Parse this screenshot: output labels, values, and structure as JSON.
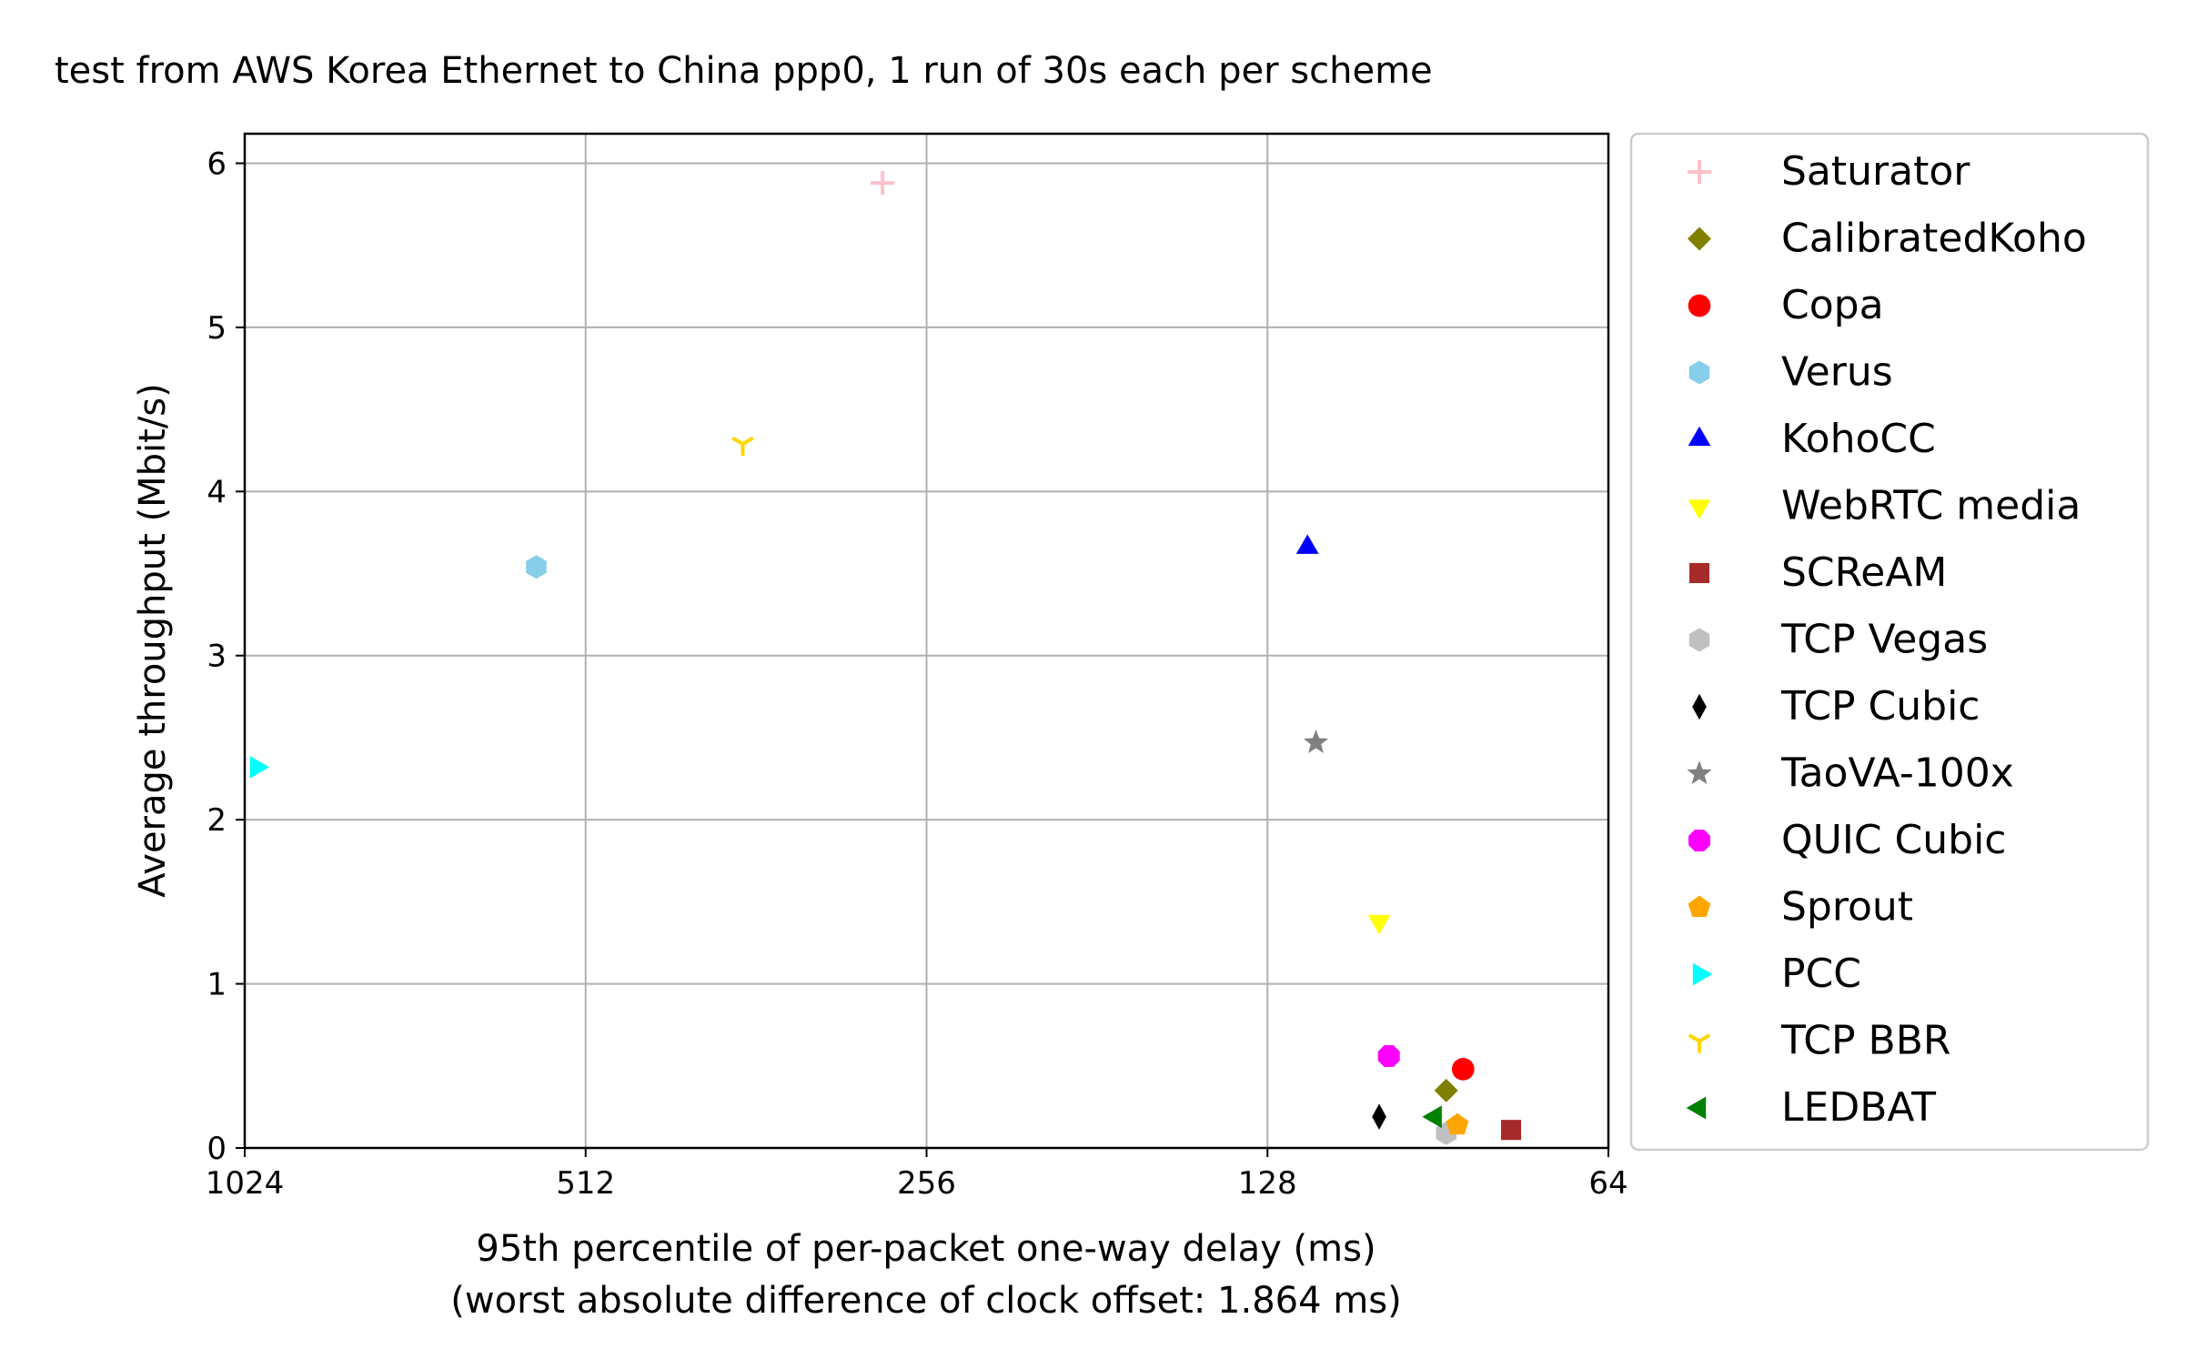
{
  "chart_data": {
    "type": "scatter",
    "title": "test from AWS Korea Ethernet to China ppp0, 1 run of 30s each per scheme",
    "xlabel": "95th percentile of per-packet one-way delay (ms)",
    "xlabel2": "(worst absolute difference of clock offset: 1.864 ms)",
    "ylabel": "Average throughput (Mbit/s)",
    "x_scale": "log2",
    "x_inverted": true,
    "xlim": [
      1024,
      64
    ],
    "ylim": [
      0,
      6.18
    ],
    "x_ticks": [
      1024,
      512,
      256,
      128,
      64
    ],
    "x_tick_labels": [
      "1024",
      "512",
      "256",
      "128",
      "64"
    ],
    "y_ticks": [
      0,
      1,
      2,
      3,
      4,
      5,
      6
    ],
    "y_tick_labels": [
      "0",
      "1",
      "2",
      "3",
      "4",
      "5",
      "6"
    ],
    "grid": true,
    "legend_position": "outside-right",
    "series": [
      {
        "name": "Saturator",
        "marker": "plus",
        "color": "#ffc0cb",
        "x": 280,
        "y": 5.88
      },
      {
        "name": "CalibratedKoho",
        "marker": "diamond",
        "color": "#808000",
        "x": 89,
        "y": 0.35
      },
      {
        "name": "Copa",
        "marker": "circle",
        "color": "#ff0000",
        "x": 86,
        "y": 0.48
      },
      {
        "name": "Verus",
        "marker": "hexagon",
        "color": "#87ceeb",
        "x": 566,
        "y": 3.54
      },
      {
        "name": "KohoCC",
        "marker": "triangle-up",
        "color": "#0000ff",
        "x": 118,
        "y": 3.66
      },
      {
        "name": "WebRTC media",
        "marker": "triangle-down",
        "color": "#ffff00",
        "x": 102,
        "y": 1.38
      },
      {
        "name": "SCReAM",
        "marker": "square",
        "color": "#a52a2a",
        "x": 78,
        "y": 0.11
      },
      {
        "name": "TCP Vegas",
        "marker": "hexagon",
        "color": "#c0c0c0",
        "x": 89,
        "y": 0.09
      },
      {
        "name": "TCP Cubic",
        "marker": "thin-diamond",
        "color": "#000000",
        "x": 102,
        "y": 0.19
      },
      {
        "name": "TaoVA-100x",
        "marker": "star",
        "color": "#808080",
        "x": 116,
        "y": 2.47
      },
      {
        "name": "QUIC Cubic",
        "marker": "octagon",
        "color": "#ff00ff",
        "x": 100,
        "y": 0.56
      },
      {
        "name": "Sprout",
        "marker": "pentagon",
        "color": "#ffa500",
        "x": 87,
        "y": 0.14
      },
      {
        "name": "PCC",
        "marker": "triangle-right",
        "color": "#00ffff",
        "x": 1000,
        "y": 2.32
      },
      {
        "name": "TCP BBR",
        "marker": "tri-down",
        "color": "#ffd700",
        "x": 372,
        "y": 4.29
      },
      {
        "name": "LEDBAT",
        "marker": "triangle-left",
        "color": "#008000",
        "x": 91,
        "y": 0.19
      }
    ]
  }
}
